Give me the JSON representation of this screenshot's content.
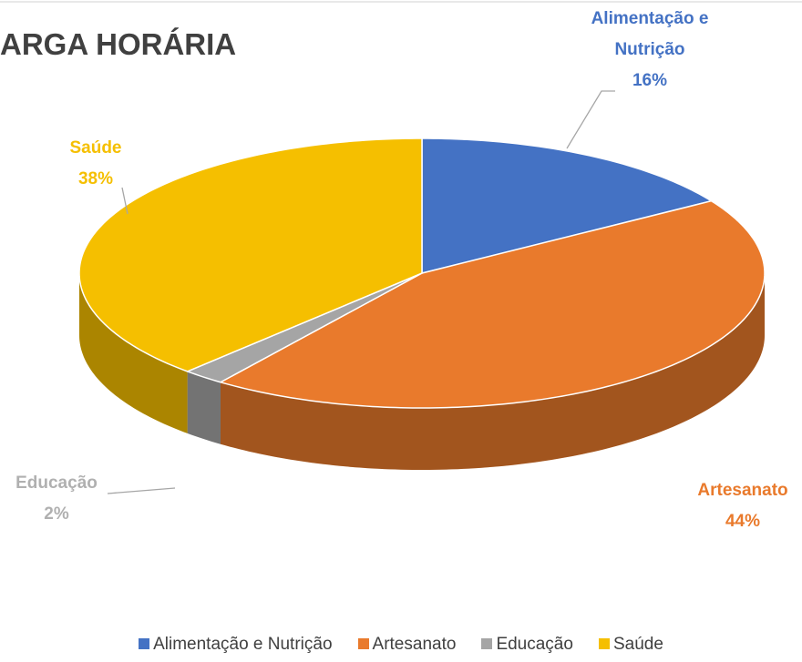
{
  "chart_data": {
    "type": "pie3d",
    "title": "ARGA HORÁRIA",
    "categories": [
      "Alimentação e Nutrição",
      "Artesanato",
      "Educação",
      "Saúde"
    ],
    "values": [
      16,
      44,
      2,
      38
    ],
    "value_labels": [
      "16%",
      "44%",
      "2%",
      "38%"
    ],
    "colors": [
      "#4472c4",
      "#e97a2c",
      "#a5a5a5",
      "#f5bf00"
    ],
    "legend": "bottom"
  }
}
